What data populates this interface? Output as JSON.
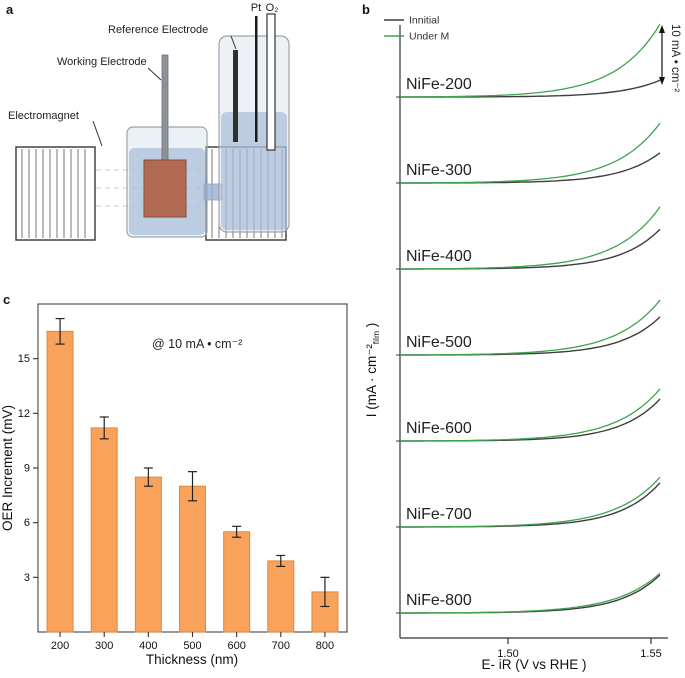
{
  "figure": {
    "panel_letters": {
      "a": "a",
      "b": "b",
      "c": "c"
    }
  },
  "panel_a": {
    "labels": {
      "reference_electrode": "Reference Electrode",
      "working_electrode": "Working Electrode",
      "electromagnet": "Electromagnet",
      "pt": "Pt",
      "o2": "O₂"
    }
  },
  "chart_data": [
    {
      "id": "lsv_stack",
      "type": "line",
      "xlabel": "E- iR (V vs RHE )",
      "ylabel": {
        "main": "I (mA · cm⁻²",
        "sub": "film",
        "end": " )"
      },
      "x_ticks": [
        "1.50",
        "1.55"
      ],
      "x_tick_values": [
        1.5,
        1.55
      ],
      "x_range": [
        1.462,
        1.556
      ],
      "legend": [
        {
          "label": "Innitial",
          "color": "#3d3d3d"
        },
        {
          "label": "Under M",
          "color": "#3fa34d"
        }
      ],
      "scale_bar": {
        "label": "10 mA • cm⁻²",
        "value_mA": 10
      },
      "panels": [
        {
          "name": "NiFe-200",
          "initial": 3.0,
          "under_m": 13.0
        },
        {
          "name": "NiFe-300",
          "initial": 5.4,
          "under_m": 10.7
        },
        {
          "name": "NiFe-400",
          "initial": 7.1,
          "under_m": 11.1
        },
        {
          "name": "NiFe-500",
          "initial": 6.8,
          "under_m": 9.8
        },
        {
          "name": "NiFe-600",
          "initial": 7.5,
          "under_m": 9.3
        },
        {
          "name": "NiFe-700",
          "initial": 7.9,
          "under_m": 8.9
        },
        {
          "name": "NiFe-800",
          "initial": 6.8,
          "under_m": 7.1
        }
      ]
    },
    {
      "id": "oer_increment",
      "type": "bar",
      "categories": [
        "200",
        "300",
        "400",
        "500",
        "600",
        "700",
        "800"
      ],
      "values": [
        16.5,
        11.2,
        8.5,
        8.0,
        5.5,
        3.9,
        2.2
      ],
      "errors": [
        0.7,
        0.6,
        0.5,
        0.8,
        0.3,
        0.3,
        0.8
      ],
      "annotation": "@ 10 mA • cm⁻²",
      "xlabel": "Thickness (nm)",
      "ylabel": "OER Increment (mV)",
      "y_ticks": [
        3,
        6,
        9,
        12,
        15
      ],
      "ylim": [
        0,
        18
      ],
      "bar_color": "#F9A25C",
      "bar_stroke": "#E2873B",
      "error_color": "#222222"
    }
  ]
}
